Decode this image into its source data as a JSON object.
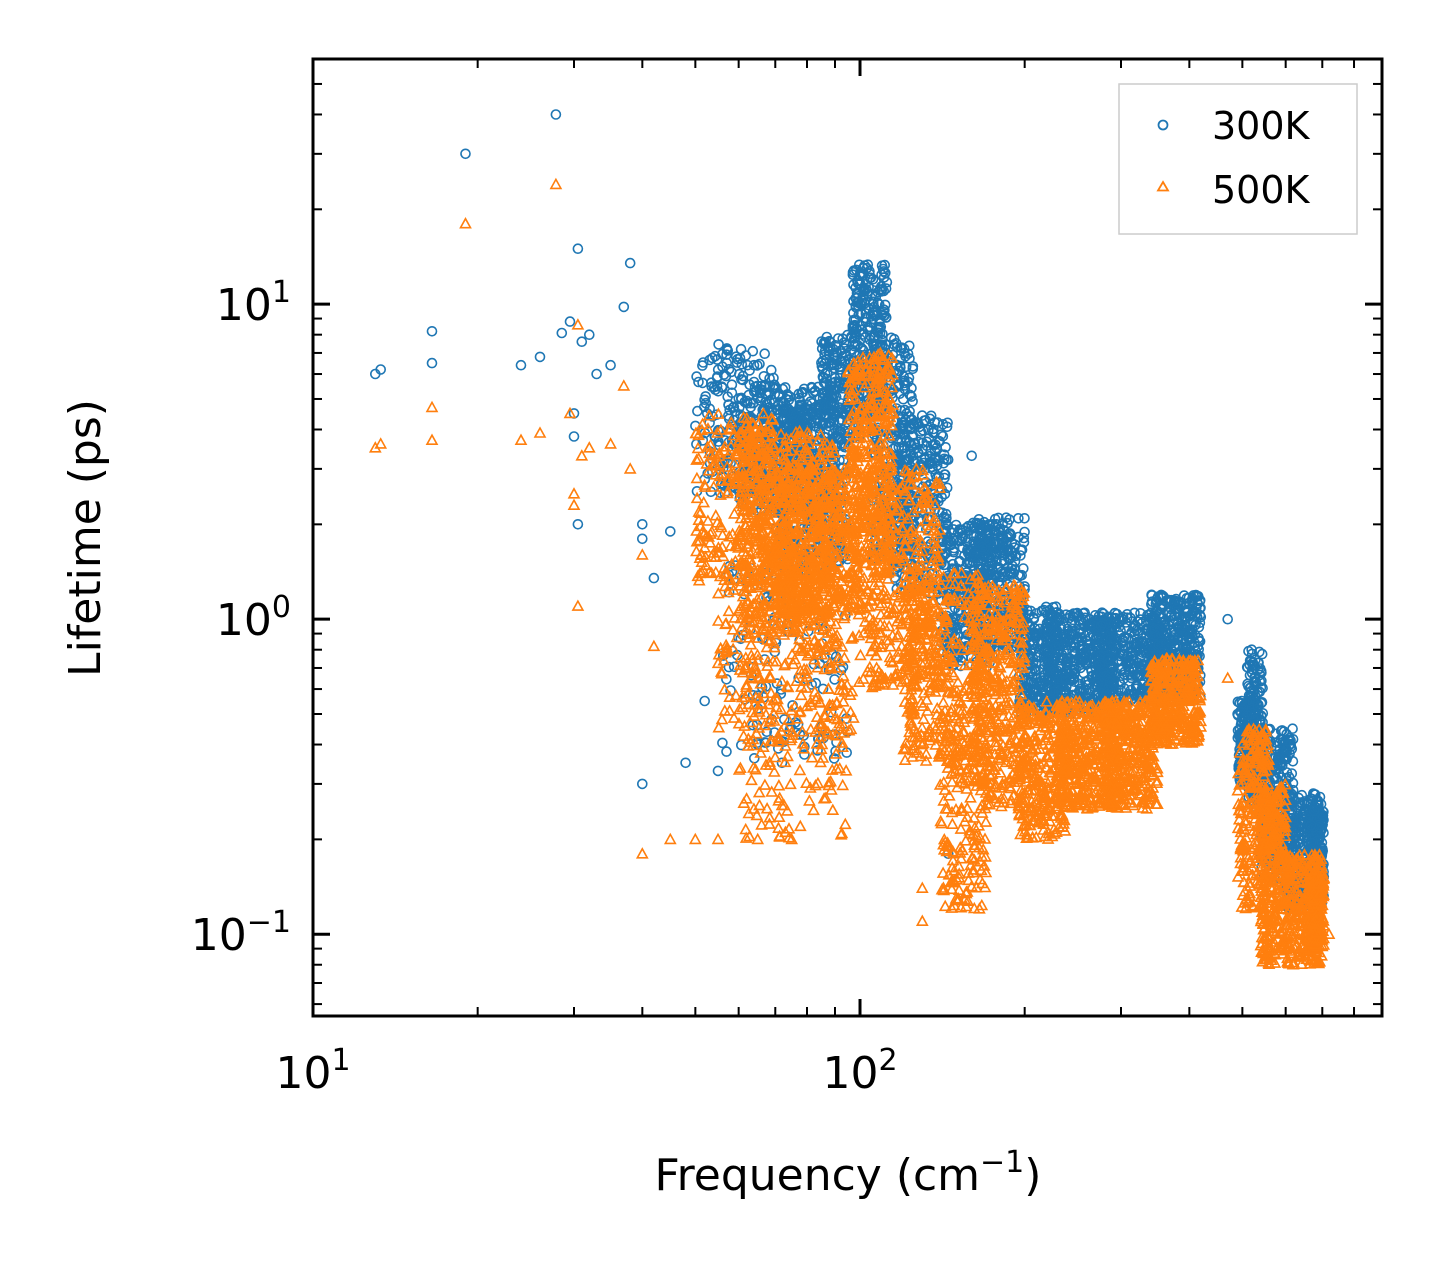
{
  "chart_data": {
    "type": "scatter",
    "xscale": "log",
    "yscale": "log",
    "xlim": [
      10,
      900
    ],
    "ylim": [
      0.055,
      60
    ],
    "xlabel": "Frequency (cm",
    "xlabel_sup": "−1",
    "xlabel_end": ")",
    "ylabel": "Lifetime (ps)",
    "xticks": [
      {
        "value": 10,
        "base": "10",
        "exp": "1"
      },
      {
        "value": 100,
        "base": "10",
        "exp": "2"
      }
    ],
    "yticks": [
      {
        "value": 0.1,
        "base": "10",
        "exp": "−1"
      },
      {
        "value": 1,
        "base": "10",
        "exp": "0"
      },
      {
        "value": 10,
        "base": "10",
        "exp": "1"
      }
    ],
    "legend_position": "top-right",
    "series": [
      {
        "name": "300K",
        "marker": "circle",
        "color": "#1f77b4",
        "outliers": [
          [
            13.0,
            6.0
          ],
          [
            13.3,
            6.2
          ],
          [
            16.5,
            8.2
          ],
          [
            16.5,
            6.5
          ],
          [
            19.0,
            30.0
          ],
          [
            24.0,
            6.4
          ],
          [
            26.0,
            6.8
          ],
          [
            27.8,
            40.0
          ],
          [
            28.5,
            8.1
          ],
          [
            29.5,
            8.8
          ],
          [
            30.5,
            15.0
          ],
          [
            31.0,
            7.6
          ],
          [
            32.0,
            8.0
          ],
          [
            33.0,
            6.0
          ],
          [
            35.0,
            6.4
          ],
          [
            37.0,
            9.8
          ],
          [
            38.0,
            13.5
          ],
          [
            30.0,
            4.5
          ],
          [
            30.0,
            3.8
          ],
          [
            30.5,
            2.0
          ],
          [
            40.0,
            2.0
          ],
          [
            40.0,
            1.8
          ],
          [
            42.0,
            1.35
          ],
          [
            45.0,
            1.9
          ],
          [
            40.0,
            0.3
          ],
          [
            48.0,
            0.35
          ],
          [
            52.0,
            0.55
          ],
          [
            55.0,
            0.33
          ],
          [
            57.0,
            0.38
          ],
          [
            65.0,
            0.4
          ],
          [
            72.0,
            0.35
          ],
          [
            145.0,
            0.18
          ],
          [
            160.0,
            3.3
          ],
          [
            175.0,
            2.0
          ],
          [
            185.0,
            2.1
          ],
          [
            470.0,
            1.0
          ],
          [
            490.0,
            0.5
          ],
          [
            520.0,
            0.8
          ],
          [
            560.0,
            0.4
          ]
        ],
        "bands": [
          [
            50,
            70,
            2.5,
            7.5,
            220
          ],
          [
            60,
            90,
            2.2,
            5.5,
            420
          ],
          [
            70,
            95,
            1.4,
            4.8,
            380
          ],
          [
            85,
            100,
            3.5,
            8.0,
            160
          ],
          [
            97,
            112,
            4.5,
            13.5,
            260
          ],
          [
            105,
            125,
            1.5,
            8.0,
            260
          ],
          [
            115,
            145,
            1.2,
            4.5,
            300
          ],
          [
            140,
            175,
            0.7,
            2.0,
            320
          ],
          [
            160,
            200,
            0.8,
            2.1,
            320
          ],
          [
            195,
            230,
            0.5,
            1.1,
            260
          ],
          [
            220,
            290,
            0.5,
            1.05,
            420
          ],
          [
            270,
            360,
            0.55,
            1.05,
            380
          ],
          [
            340,
            420,
            0.55,
            1.2,
            360
          ],
          [
            490,
            520,
            0.3,
            0.55,
            140
          ],
          [
            510,
            545,
            0.25,
            0.8,
            180
          ],
          [
            540,
            620,
            0.15,
            0.45,
            280
          ],
          [
            600,
            700,
            0.12,
            0.28,
            300
          ],
          [
            660,
            705,
            0.13,
            0.25,
            160
          ],
          [
            55,
            95,
            0.35,
            1.5,
            120
          ]
        ]
      },
      {
        "name": "500K",
        "marker": "triangle",
        "color": "#ff7f0e",
        "outliers": [
          [
            13.0,
            3.5
          ],
          [
            13.3,
            3.6
          ],
          [
            16.5,
            4.7
          ],
          [
            16.5,
            3.7
          ],
          [
            19.0,
            18.0
          ],
          [
            24.0,
            3.7
          ],
          [
            26.0,
            3.9
          ],
          [
            27.8,
            24.0
          ],
          [
            29.5,
            4.5
          ],
          [
            30.0,
            2.5
          ],
          [
            30.0,
            2.3
          ],
          [
            30.5,
            1.1
          ],
          [
            30.5,
            8.6
          ],
          [
            31.0,
            3.3
          ],
          [
            32.0,
            3.5
          ],
          [
            35.0,
            3.6
          ],
          [
            37.0,
            5.5
          ],
          [
            38.0,
            3.0
          ],
          [
            40.0,
            1.6
          ],
          [
            40.0,
            0.18
          ],
          [
            42.0,
            0.82
          ],
          [
            45.0,
            0.2
          ],
          [
            50.0,
            0.2
          ],
          [
            55.0,
            0.2
          ],
          [
            65.0,
            0.2
          ],
          [
            75.0,
            0.2
          ],
          [
            130.0,
            0.11
          ],
          [
            130.0,
            0.14
          ],
          [
            470.0,
            0.65
          ],
          [
            720.0,
            0.1
          ]
        ],
        "bands": [
          [
            50,
            70,
            1.3,
            4.5,
            260
          ],
          [
            60,
            90,
            0.9,
            4.0,
            500
          ],
          [
            70,
            100,
            1.0,
            3.0,
            500
          ],
          [
            55,
            100,
            0.4,
            1.5,
            260
          ],
          [
            95,
            115,
            1.5,
            7.0,
            320
          ],
          [
            100,
            140,
            0.6,
            3.0,
            400
          ],
          [
            120,
            170,
            0.35,
            1.4,
            380
          ],
          [
            140,
            170,
            0.12,
            0.45,
            160
          ],
          [
            160,
            200,
            0.25,
            1.3,
            380
          ],
          [
            195,
            240,
            0.2,
            0.55,
            300
          ],
          [
            230,
            300,
            0.25,
            0.55,
            400
          ],
          [
            280,
            350,
            0.25,
            0.55,
            320
          ],
          [
            340,
            420,
            0.4,
            0.75,
            360
          ],
          [
            490,
            560,
            0.12,
            0.45,
            240
          ],
          [
            540,
            600,
            0.08,
            0.3,
            280
          ],
          [
            600,
            700,
            0.08,
            0.18,
            280
          ],
          [
            660,
            705,
            0.09,
            0.16,
            160
          ],
          [
            60,
            95,
            0.2,
            0.9,
            160
          ]
        ]
      }
    ]
  }
}
